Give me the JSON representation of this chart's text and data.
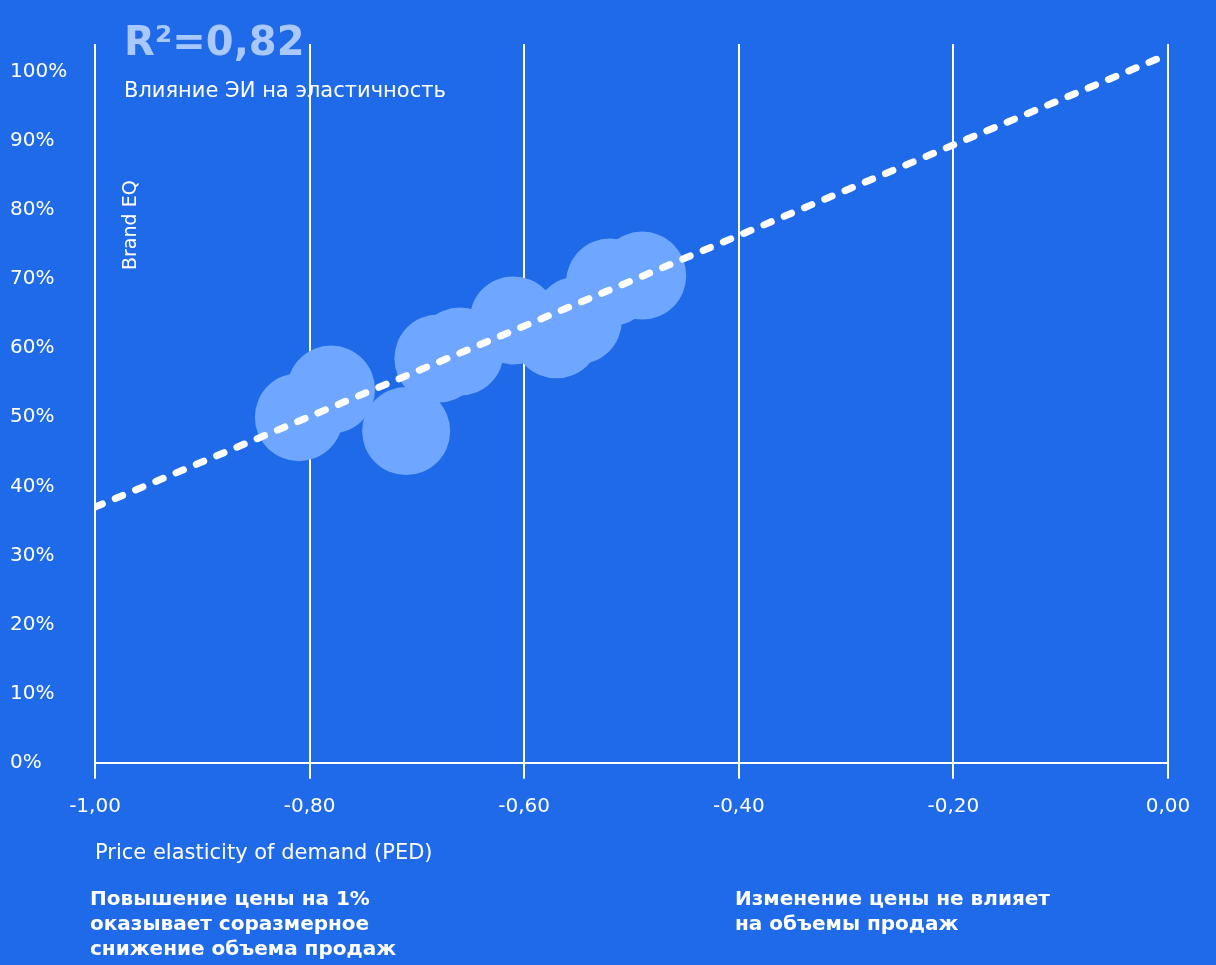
{
  "chart_data": {
    "type": "bubble",
    "title": "R²=0,82",
    "subtitle": "Влияние ЭИ на эластичность",
    "xlabel": "Price elasticity of demand (PED)",
    "ylabel": "Brand EQ",
    "x": [
      -0.81,
      -0.78,
      -0.71,
      -0.68,
      -0.66,
      -0.61,
      -0.57,
      -0.55,
      -0.52,
      -0.49
    ],
    "values": [
      50,
      54,
      48,
      58.5,
      59.5,
      64,
      62,
      64,
      69.5,
      70.5
    ],
    "sizes": [
      1,
      1,
      1,
      1,
      1,
      1,
      1,
      1,
      1,
      1
    ],
    "color": "#6fa6ff",
    "series": [
      {
        "type": "line",
        "color": "#ffffff",
        "x": [
          -1,
          0
        ],
        "values": [
          37,
          102.5
        ],
        "line_style": "dotted",
        "marker": "none"
      }
    ],
    "xlim": [
      -1,
      0
    ],
    "ylim": [
      0,
      104
    ],
    "xticks": [
      {
        "value": -1,
        "label": "-1,00"
      },
      {
        "value": -0.8,
        "label": "-0,80"
      },
      {
        "value": -0.6,
        "label": "-0,60"
      },
      {
        "value": -0.4,
        "label": "-0,40"
      },
      {
        "value": -0.2,
        "label": "-0,20"
      },
      {
        "value": 0,
        "label": "0,00"
      }
    ],
    "yticks": [
      {
        "value": 0,
        "label": "0%"
      },
      {
        "value": 10,
        "label": "10%"
      },
      {
        "value": 20,
        "label": "20%"
      },
      {
        "value": 30,
        "label": "30%"
      },
      {
        "value": 40,
        "label": "40%"
      },
      {
        "value": 50,
        "label": "50%"
      },
      {
        "value": 60,
        "label": "60%"
      },
      {
        "value": 70,
        "label": "70%"
      },
      {
        "value": 80,
        "label": "80%"
      },
      {
        "value": 90,
        "label": "90%"
      },
      {
        "value": 100,
        "label": "100%"
      }
    ],
    "grid": "x",
    "legend": false,
    "marker": "circle",
    "annotations": [
      "Повышение цены на 1%\nоказывает соразмерное\nснижение объема продаж",
      "Изменение цены не влияет\nна объемы продаж"
    ]
  }
}
